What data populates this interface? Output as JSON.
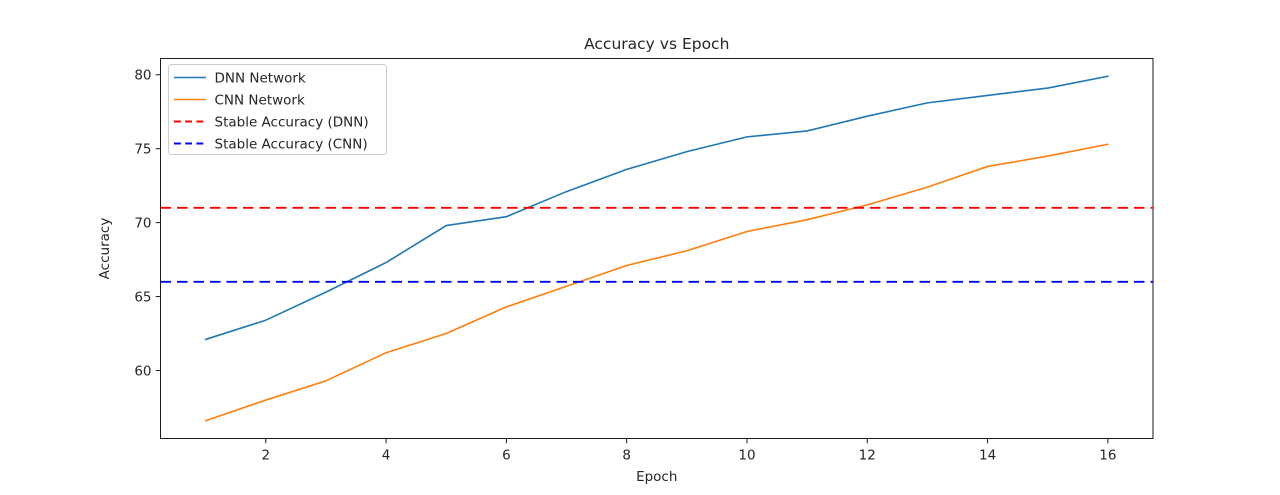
{
  "chart_data": {
    "type": "line",
    "title": "Accuracy vs Epoch",
    "xlabel": "Epoch",
    "ylabel": "Accuracy",
    "x": [
      1,
      2,
      3,
      4,
      5,
      6,
      7,
      8,
      9,
      10,
      11,
      12,
      13,
      14,
      15,
      16
    ],
    "series": [
      {
        "name": "DNN Network",
        "color": "#1f77b4",
        "style": "solid",
        "values": [
          62.1,
          63.4,
          65.3,
          67.3,
          69.8,
          70.4,
          72.1,
          73.6,
          74.8,
          75.8,
          76.2,
          77.2,
          78.1,
          78.6,
          79.1,
          79.9
        ]
      },
      {
        "name": "CNN Network",
        "color": "#ff7f0e",
        "style": "solid",
        "values": [
          56.6,
          58.0,
          59.3,
          61.2,
          62.5,
          64.3,
          65.7,
          67.1,
          68.1,
          69.4,
          70.2,
          71.2,
          72.4,
          73.8,
          74.5,
          75.3
        ]
      }
    ],
    "hlines": [
      {
        "name": "Stable Accuracy (DNN)",
        "color": "#ff0000",
        "style": "dashed",
        "value": 71
      },
      {
        "name": "Stable Accuracy (CNN)",
        "color": "#0000ff",
        "style": "dashed",
        "value": 66
      }
    ],
    "xticks": [
      2,
      4,
      6,
      8,
      10,
      12,
      14,
      16
    ],
    "yticks": [
      60,
      65,
      70,
      75,
      80
    ],
    "xlim": [
      0.25,
      16.75
    ],
    "ylim": [
      55.4,
      81.1
    ],
    "grid": false,
    "legend_position": "upper-left"
  },
  "colors": {
    "background": "#ffffff",
    "spine": "#1a1a1a",
    "text": "#262626",
    "legend_border": "#cccccc",
    "dnn_line": "#1f77b4",
    "cnn_line": "#ff7f0e",
    "stable_dnn_line": "#ff0000",
    "stable_cnn_line": "#0000ff"
  }
}
